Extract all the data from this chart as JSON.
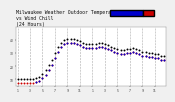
{
  "title": "Milwaukee Weather Outdoor Temperature\nvs Wind Chill\n(24 Hours)",
  "title_fontsize": 3.5,
  "background_color": "#f0f0f0",
  "plot_bg_color": "#ffffff",
  "grid_color": "#aaaaaa",
  "ylim": [
    5,
    50
  ],
  "xlim": [
    -0.5,
    47.5
  ],
  "time_hours_temp": [
    0,
    1,
    2,
    3,
    4,
    5,
    6,
    7,
    8,
    9,
    10,
    11,
    12,
    13,
    14,
    15,
    16,
    17,
    18,
    19,
    20,
    21,
    22,
    23,
    24,
    25,
    26,
    27,
    28,
    29,
    30,
    31,
    32,
    33,
    34,
    35,
    36,
    37,
    38,
    39,
    40,
    41,
    42,
    43,
    44,
    45,
    46,
    47
  ],
  "temp_outdoor": [
    10,
    10,
    10,
    10,
    10,
    10,
    11,
    12,
    14,
    17,
    21,
    25,
    30,
    35,
    38,
    40,
    41,
    41,
    41,
    40,
    39,
    38,
    37,
    37,
    37,
    37,
    38,
    38,
    37,
    36,
    35,
    34,
    33,
    32,
    32,
    33,
    33,
    34,
    33,
    32,
    31,
    31,
    30,
    30,
    29,
    29,
    28,
    28
  ],
  "wind_chill": [
    7,
    7,
    7,
    7,
    7,
    7,
    8,
    9,
    11,
    13,
    17,
    21,
    26,
    31,
    35,
    37,
    38,
    38,
    38,
    37,
    36,
    35,
    34,
    34,
    34,
    34,
    35,
    35,
    34,
    33,
    32,
    31,
    30,
    29,
    29,
    30,
    30,
    31,
    30,
    29,
    28,
    28,
    27,
    27,
    26,
    26,
    25,
    25
  ],
  "blue_hours": [
    6,
    7,
    8,
    9,
    10,
    11,
    12,
    13,
    14,
    15,
    16,
    17,
    18,
    19,
    20,
    21,
    22,
    23,
    24,
    25,
    26,
    27,
    28,
    29,
    30,
    31,
    32,
    33,
    34,
    35,
    36,
    37,
    38,
    39,
    40,
    41,
    42,
    43,
    44,
    45,
    46,
    47
  ],
  "blue_vals": [
    8,
    9,
    11,
    13,
    17,
    21,
    26,
    31,
    35,
    37,
    38,
    38,
    38,
    37,
    36,
    35,
    34,
    34,
    34,
    34,
    35,
    35,
    34,
    33,
    32,
    31,
    30,
    29,
    29,
    30,
    30,
    31,
    30,
    29,
    28,
    28,
    27,
    27,
    26,
    26,
    25,
    25
  ],
  "temp_color": "#000000",
  "windchill_color": "#cc0000",
  "blue_color": "#0000cc",
  "legend_blue_color": "#0000cc",
  "legend_red_color": "#cc0000",
  "dot_size": 2,
  "vgrid_positions": [
    0,
    4,
    8,
    12,
    16,
    20,
    24,
    28,
    32,
    36,
    40,
    44
  ],
  "ytick_labels": [
    "10",
    "20",
    "30",
    "40"
  ],
  "ytick_positions": [
    10,
    20,
    30,
    40
  ],
  "xtick_positions": [
    0,
    4,
    8,
    12,
    16,
    20,
    24,
    28,
    32,
    36,
    40,
    44
  ],
  "xtick_labels": [
    "1",
    "3",
    "5",
    "7",
    "9",
    "11",
    "1",
    "3",
    "5",
    "7",
    "9",
    "11"
  ]
}
